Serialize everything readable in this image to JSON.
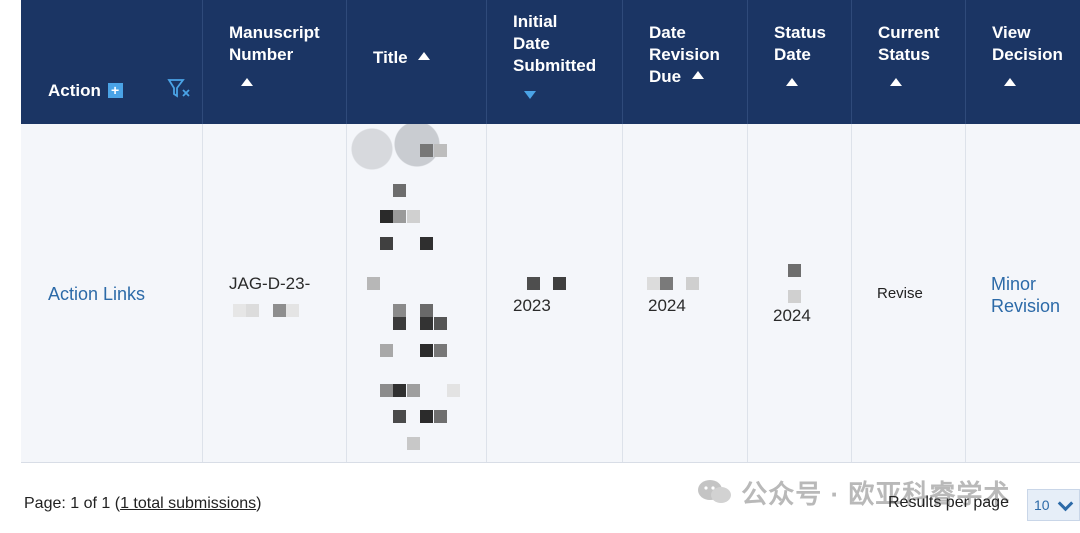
{
  "headers": {
    "action": "Action",
    "manuscript": [
      "Manuscript",
      "Number"
    ],
    "title": "Title",
    "initial": [
      "Initial",
      "Date",
      "Submitted"
    ],
    "revision_due": [
      "Date",
      "Revision",
      "Due"
    ],
    "status_date": [
      "Status",
      "Date"
    ],
    "current_status": [
      "Current",
      "Status"
    ],
    "view_decision": [
      "View",
      "Decision"
    ]
  },
  "row": {
    "action": "Action Links",
    "manuscript_number": "JAG-D-23-",
    "initial_date": "2023",
    "revision_due": "2024",
    "status_date": "2024",
    "current_status": "Revise",
    "decision_line1": "Minor",
    "decision_line2": "Revision"
  },
  "footer": {
    "page_prefix": "Page: 1 of 1 (",
    "total_link": "1 total submissions",
    "page_suffix": ")",
    "results_label": "Results per page",
    "results_value": "10"
  },
  "watermark": "公众号 · 欧亚科睿学术",
  "colors": {
    "header_bg": "#1b3564",
    "link": "#2c6aa8",
    "sort_active": "#4aa3e6"
  }
}
